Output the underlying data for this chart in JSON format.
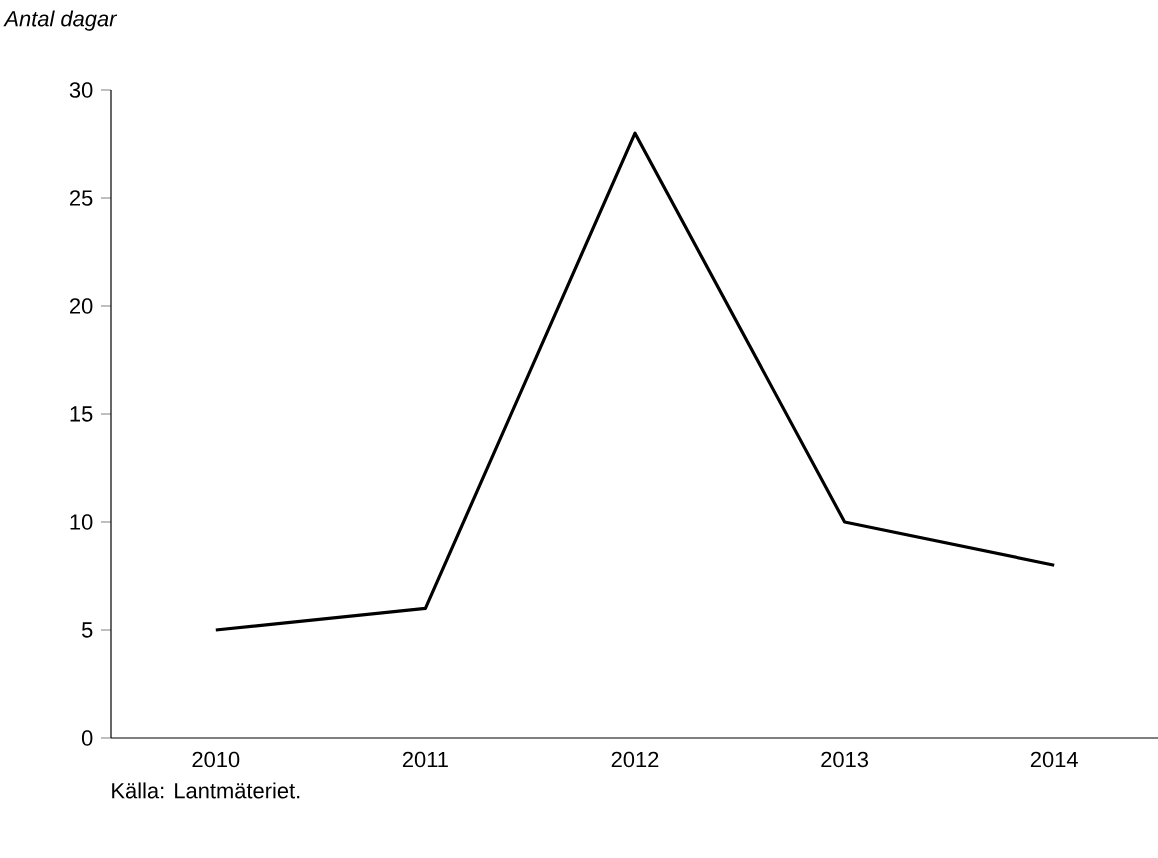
{
  "chart_data": {
    "type": "line",
    "ylabel": "Antal dagar",
    "categories": [
      "2010",
      "2011",
      "2012",
      "2013",
      "2014"
    ],
    "series": [
      {
        "color": "#000000",
        "values": [
          5,
          6,
          28,
          10,
          8
        ]
      }
    ],
    "ylim": [
      0,
      30
    ],
    "yticks": [
      0,
      5,
      10,
      15,
      20,
      25,
      30
    ],
    "annotations": [
      "Källa: Lantmäteriet."
    ]
  }
}
